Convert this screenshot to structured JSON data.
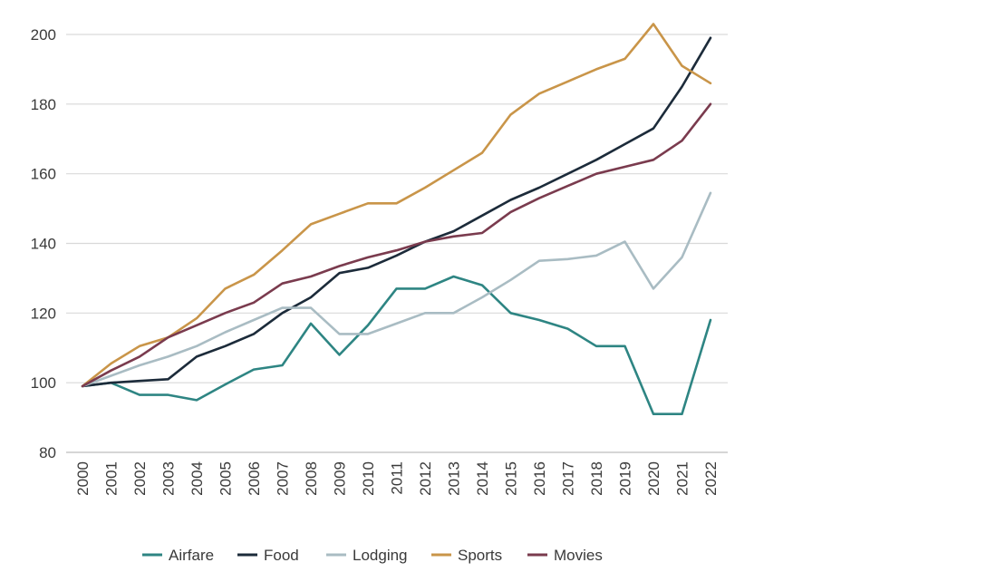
{
  "chart_data": {
    "type": "line",
    "title": "",
    "xlabel": "",
    "ylabel": "",
    "ylim": [
      80,
      200
    ],
    "yticks": [
      80,
      100,
      120,
      140,
      160,
      180,
      200
    ],
    "grid": true,
    "legend_position": "bottom",
    "categories": [
      "2000",
      "2001",
      "2002",
      "2003",
      "2004",
      "2005",
      "2006",
      "2007",
      "2008",
      "2009",
      "2010",
      "2011",
      "2012",
      "2013",
      "2014",
      "2015",
      "2016",
      "2017",
      "2018",
      "2019",
      "2020",
      "2021",
      "2022"
    ],
    "series": [
      {
        "name": "Airfare",
        "color": "#2e8583",
        "values": [
          99,
          100,
          96.5,
          96.5,
          95,
          99.5,
          103.8,
          105,
          117,
          108,
          116.5,
          127,
          127,
          130.5,
          128,
          120,
          118,
          115.5,
          110.5,
          110.5,
          91,
          91,
          118
        ]
      },
      {
        "name": "Food",
        "color": "#1c2b3a",
        "values": [
          99,
          100,
          100.5,
          101,
          107.5,
          110.5,
          114,
          120,
          124.5,
          131.5,
          133,
          136.5,
          140.5,
          143.5,
          148,
          152.5,
          156,
          160,
          164,
          168.5,
          173,
          185,
          199
        ]
      },
      {
        "name": "Lodging",
        "color": "#a9bcc3",
        "values": [
          99,
          102,
          105,
          107.5,
          110.5,
          114.5,
          118,
          121.5,
          121.5,
          114,
          114,
          117,
          120,
          120,
          124.5,
          129.5,
          135,
          135.5,
          136.5,
          140.5,
          127,
          136,
          154.5
        ]
      },
      {
        "name": "Sports",
        "color": "#c99549",
        "values": [
          99,
          105.5,
          110.5,
          113,
          118.5,
          127,
          131,
          138,
          145.5,
          148.5,
          151.5,
          151.5,
          156,
          161,
          166,
          177,
          183,
          186.5,
          190,
          193,
          203,
          191,
          186
        ]
      },
      {
        "name": "Movies",
        "color": "#7a3b4e",
        "values": [
          99,
          103.5,
          107.5,
          113,
          116.5,
          120,
          123,
          128.5,
          130.5,
          133.5,
          136,
          138,
          140.5,
          142,
          143,
          149,
          153,
          156.5,
          160,
          162,
          164,
          169.5,
          180
        ]
      }
    ]
  }
}
